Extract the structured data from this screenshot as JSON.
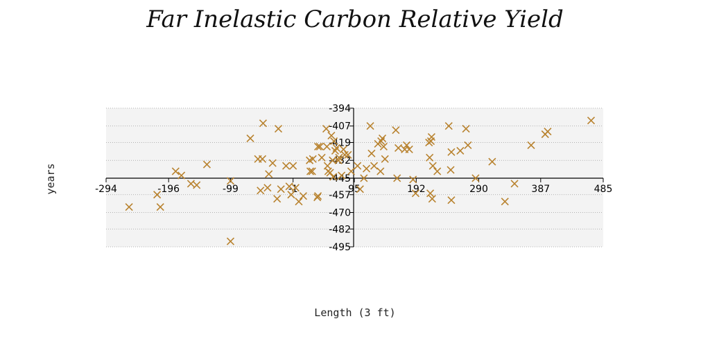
{
  "chart_data": {
    "type": "scatter",
    "title": "Far Inelastic Carbon Relative Yield",
    "xlabel": "Length (3 ft)",
    "ylabel": "years",
    "xlim": [
      -294,
      485
    ],
    "ylim": [
      -495,
      -394
    ],
    "xticks": [
      -294,
      -196,
      -99,
      -1,
      95,
      192,
      290,
      387,
      485
    ],
    "yticks": [
      -394,
      -407,
      -419,
      -432,
      -445,
      -457,
      -470,
      -482,
      -495
    ],
    "grid": "horizontal",
    "marker_color": "#b8822e",
    "series": [
      {
        "values": [
          [
            -258,
            -466
          ],
          [
            -214,
            -457
          ],
          [
            -209,
            -466
          ],
          [
            -185,
            -440
          ],
          [
            -176,
            -443
          ],
          [
            -161,
            -449
          ],
          [
            -152,
            -450
          ],
          [
            -136,
            -435
          ],
          [
            -99,
            -447
          ],
          [
            -99,
            -491
          ],
          [
            -68,
            -416
          ],
          [
            -56,
            -431
          ],
          [
            -52,
            -454
          ],
          [
            -49,
            -431
          ],
          [
            -48,
            -405
          ],
          [
            -41,
            -452
          ],
          [
            -39,
            -442
          ],
          [
            -33,
            -434
          ],
          [
            -26,
            -460
          ],
          [
            -24,
            -409
          ],
          [
            -20,
            -453
          ],
          [
            -12,
            -436
          ],
          [
            -7,
            -451
          ],
          [
            -4,
            -457
          ],
          [
            -1,
            -436
          ],
          [
            3,
            -452
          ],
          [
            8,
            -462
          ],
          [
            15,
            -458
          ],
          [
            25,
            -432
          ],
          [
            26,
            -440
          ],
          [
            29,
            -440
          ],
          [
            30,
            -431
          ],
          [
            37,
            -459
          ],
          [
            38,
            -458
          ],
          [
            38,
            -422
          ],
          [
            41,
            -422
          ],
          [
            44,
            -430
          ],
          [
            51,
            -409
          ],
          [
            52,
            -422
          ],
          [
            53,
            -436
          ],
          [
            54,
            -440
          ],
          [
            57,
            -441
          ],
          [
            59,
            -414
          ],
          [
            61,
            -432
          ],
          [
            62,
            -444
          ],
          [
            63,
            -418
          ],
          [
            65,
            -425
          ],
          [
            67,
            -423
          ],
          [
            70,
            -432
          ],
          [
            71,
            -430
          ],
          [
            75,
            -443
          ],
          [
            78,
            -424
          ],
          [
            80,
            -428
          ],
          [
            85,
            -428
          ],
          [
            90,
            -440
          ],
          [
            100,
            -436
          ],
          [
            104,
            -453
          ],
          [
            110,
            -445
          ],
          [
            114,
            -438
          ],
          [
            120,
            -407
          ],
          [
            122,
            -427
          ],
          [
            126,
            -436
          ],
          [
            132,
            -420
          ],
          [
            136,
            -440
          ],
          [
            137,
            -418
          ],
          [
            139,
            -416
          ],
          [
            141,
            -422
          ],
          [
            143,
            -431
          ],
          [
            160,
            -410
          ],
          [
            162,
            -445
          ],
          [
            164,
            -423
          ],
          [
            174,
            -424
          ],
          [
            177,
            -421
          ],
          [
            181,
            -424
          ],
          [
            187,
            -446
          ],
          [
            191,
            -456
          ],
          [
            212,
            -419
          ],
          [
            213,
            -430
          ],
          [
            214,
            -456
          ],
          [
            215,
            -418
          ],
          [
            216,
            -415
          ],
          [
            217,
            -460
          ],
          [
            218,
            -436
          ],
          [
            225,
            -440
          ],
          [
            243,
            -407
          ],
          [
            246,
            -439
          ],
          [
            247,
            -426
          ],
          [
            247,
            -461
          ],
          [
            261,
            -425
          ],
          [
            270,
            -409
          ],
          [
            273,
            -421
          ],
          [
            285,
            -445
          ],
          [
            311,
            -433
          ],
          [
            331,
            -462
          ],
          [
            346,
            -449
          ],
          [
            372,
            -421
          ],
          [
            394,
            -413
          ],
          [
            398,
            -411
          ],
          [
            466,
            -403
          ]
        ]
      }
    ]
  }
}
